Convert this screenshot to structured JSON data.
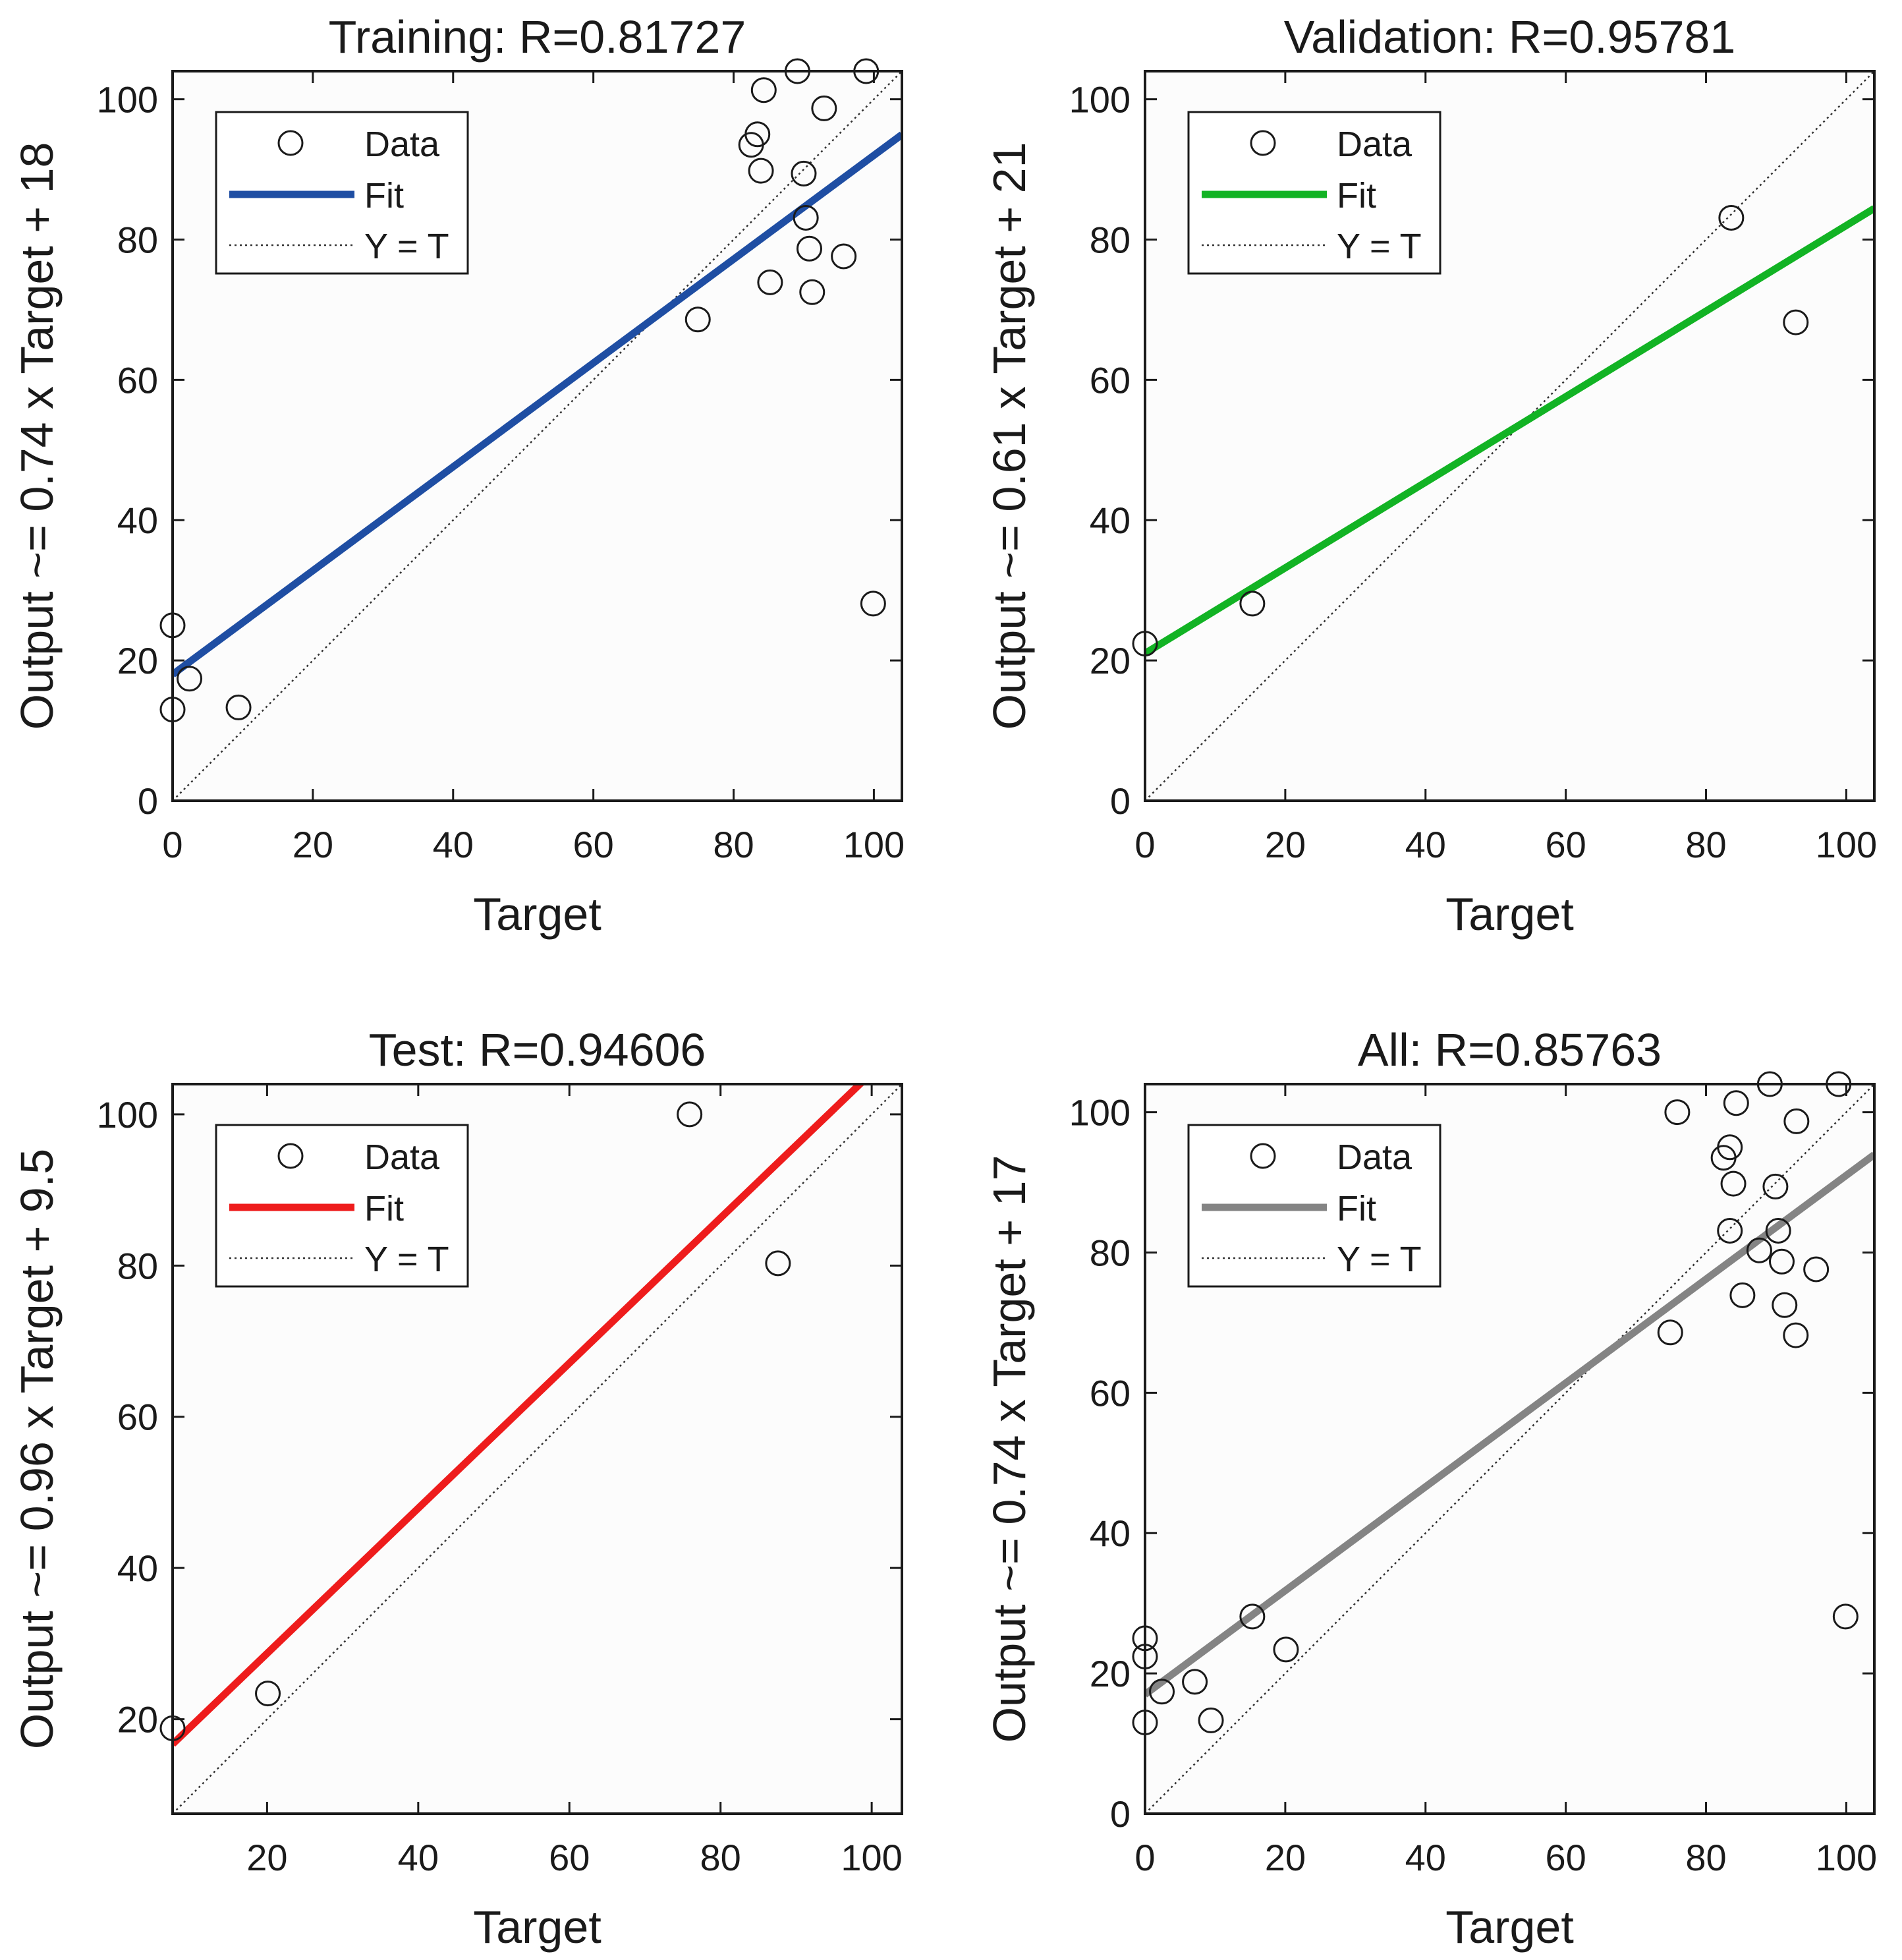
{
  "chart_data": [
    {
      "type": "scatter",
      "title": "Training: R=0.81727",
      "xlabel": "Target",
      "ylabel": "Output ~= 0.74 x Target + 18",
      "xlim": [
        0,
        104
      ],
      "ylim": [
        0,
        104
      ],
      "xticks": [
        0,
        20,
        40,
        60,
        80,
        100
      ],
      "yticks": [
        0,
        20,
        40,
        60,
        80,
        100
      ],
      "fit": {
        "slope": 0.74,
        "intercept": 18,
        "color": "#1f4ea3"
      },
      "legend": {
        "position": "top-left",
        "entries": [
          "Data",
          "Fit",
          "Y = T"
        ]
      },
      "points": [
        [
          0,
          25
        ],
        [
          0,
          13
        ],
        [
          2.4,
          17.4
        ],
        [
          9.4,
          13.3
        ],
        [
          74.9,
          68.6
        ],
        [
          82.5,
          93.5
        ],
        [
          83.4,
          95
        ],
        [
          83.9,
          89.8
        ],
        [
          84.3,
          101.3
        ],
        [
          85.2,
          73.9
        ],
        [
          89.1,
          104
        ],
        [
          90,
          89.4
        ],
        [
          90.3,
          83.1
        ],
        [
          90.8,
          78.7
        ],
        [
          91.2,
          72.5
        ],
        [
          92.9,
          98.7
        ],
        [
          95.7,
          77.6
        ],
        [
          98.9,
          104
        ],
        [
          99.9,
          28.1
        ]
      ]
    },
    {
      "type": "scatter",
      "title": "Validation: R=0.95781",
      "xlabel": "Target",
      "ylabel": "Output ~= 0.61 x Target + 21",
      "xlim": [
        0,
        104
      ],
      "ylim": [
        0,
        104
      ],
      "xticks": [
        0,
        20,
        40,
        60,
        80,
        100
      ],
      "yticks": [
        0,
        20,
        40,
        60,
        80,
        100
      ],
      "fit": {
        "slope": 0.61,
        "intercept": 21,
        "color": "#12b324"
      },
      "legend": {
        "position": "top-left",
        "entries": [
          "Data",
          "Fit",
          "Y = T"
        ]
      },
      "points": [
        [
          0,
          22.4
        ],
        [
          15.3,
          28.1
        ],
        [
          83.6,
          83.1
        ],
        [
          92.8,
          68.2
        ]
      ]
    },
    {
      "type": "scatter",
      "title": "Test: R=0.94606",
      "xlabel": "Target",
      "ylabel": "Output ~= 0.96 x Target + 9.5",
      "xlim": [
        7.5,
        104
      ],
      "ylim": [
        7.5,
        104
      ],
      "xticks": [
        20,
        40,
        60,
        80,
        100
      ],
      "yticks": [
        20,
        40,
        60,
        80,
        100
      ],
      "fit": {
        "slope": 0.96,
        "intercept": 9.5,
        "color": "#ee1c1c"
      },
      "legend": {
        "position": "top-left",
        "entries": [
          "Data",
          "Fit",
          "Y = T"
        ]
      },
      "points": [
        [
          7.5,
          18.8
        ],
        [
          20.1,
          23.4
        ],
        [
          75.9,
          100
        ],
        [
          87.6,
          80.3
        ]
      ]
    },
    {
      "type": "scatter",
      "title": "All: R=0.85763",
      "xlabel": "Target",
      "ylabel": "Output ~= 0.74 x Target + 17",
      "xlim": [
        0,
        104
      ],
      "ylim": [
        0,
        104
      ],
      "xticks": [
        0,
        20,
        40,
        60,
        80,
        100
      ],
      "yticks": [
        0,
        20,
        40,
        60,
        80,
        100
      ],
      "fit": {
        "slope": 0.74,
        "intercept": 17,
        "color": "#848484"
      },
      "legend": {
        "position": "top-left",
        "entries": [
          "Data",
          "Fit",
          "Y = T"
        ]
      },
      "points": [
        [
          0,
          25
        ],
        [
          0,
          22.4
        ],
        [
          0,
          13
        ],
        [
          2.4,
          17.4
        ],
        [
          7.1,
          18.8
        ],
        [
          9.4,
          13.3
        ],
        [
          15.3,
          28.1
        ],
        [
          20.1,
          23.4
        ],
        [
          74.9,
          68.6
        ],
        [
          75.9,
          100
        ],
        [
          82.5,
          93.5
        ],
        [
          83.4,
          95
        ],
        [
          83.4,
          83.1
        ],
        [
          83.9,
          89.8
        ],
        [
          84.3,
          101.3
        ],
        [
          85.2,
          73.9
        ],
        [
          87.6,
          80.3
        ],
        [
          89.1,
          104
        ],
        [
          89.9,
          89.4
        ],
        [
          90.3,
          83.1
        ],
        [
          90.8,
          78.7
        ],
        [
          91.2,
          72.5
        ],
        [
          92.8,
          68.2
        ],
        [
          92.9,
          98.7
        ],
        [
          95.7,
          77.6
        ],
        [
          98.9,
          104
        ],
        [
          99.9,
          28.1
        ]
      ]
    }
  ]
}
